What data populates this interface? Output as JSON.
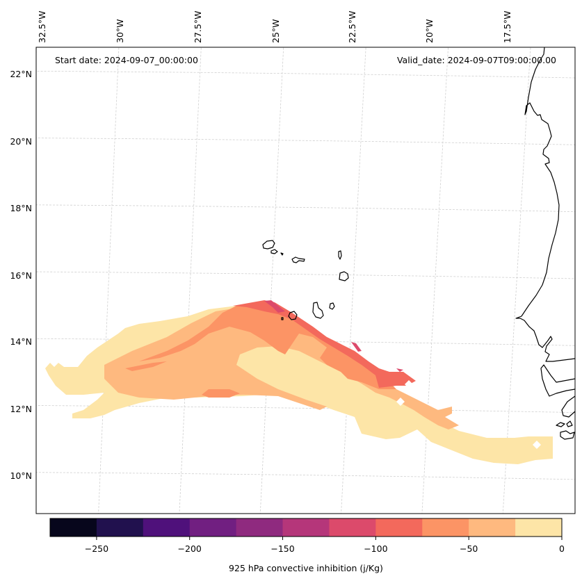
{
  "figure": {
    "annotation_left": "Start date: 2024-09-07_00:00:00",
    "annotation_right": "Valid_date: 2024-09-07T09:00:00.00"
  },
  "chart_data": {
    "type": "heatmap",
    "title": "",
    "variable": "925 hPa convective inhibition (j/Kg)",
    "start_date": "2024-09-07_00:00:00",
    "valid_date": "2024-09-07T09:00:00.00",
    "lon_range": [
      -33.0,
      -15.0
    ],
    "lat_range": [
      9.0,
      22.5
    ],
    "x_ticks": [
      "32.5°W",
      "30°W",
      "27.5°W",
      "25°W",
      "22.5°W",
      "20°W",
      "17.5°W"
    ],
    "x_tick_values": [
      -32.5,
      -30,
      -27.5,
      -25,
      -22.5,
      -20,
      -17.5
    ],
    "y_ticks": [
      "22°N",
      "20°N",
      "18°N",
      "16°N",
      "14°N",
      "12°N",
      "10°N"
    ],
    "y_tick_values": [
      22,
      20,
      18,
      16,
      14,
      12,
      10
    ],
    "grid": true,
    "colorbar": {
      "label": "925 hPa convective inhibition (j/Kg)",
      "orientation": "horizontal",
      "placement": "bottom",
      "range": [
        -275,
        0
      ],
      "levels": [
        -275,
        -250,
        -225,
        -200,
        -175,
        -150,
        -125,
        -100,
        -75,
        -50,
        -25,
        0
      ],
      "colors": [
        "#07061c",
        "#21114e",
        "#4f117b",
        "#711f81",
        "#8f2a7f",
        "#b5367a",
        "#dc4a6b",
        "#f3695c",
        "#fc9465",
        "#feb97f",
        "#fde5a7"
      ],
      "tick_values": [
        -250,
        -200,
        -150,
        -100,
        -50,
        0
      ],
      "tick_labels": [
        "−250",
        "−200",
        "−150",
        "−100",
        "−50",
        "0"
      ]
    },
    "regions": [
      {
        "level": "-25 to 0",
        "color": "#fde5a7",
        "description": "broad band from ~32.5°W,13°N east-southeast to ~16°W,10.5°N"
      },
      {
        "level": "-50 to -25",
        "color": "#feb97f",
        "description": "central band ~30°W–19°W, 12–14.5°N"
      },
      {
        "level": "-75 to -50",
        "color": "#fc9465",
        "description": "northern core ~28°W–21°W, 12.5–15°N"
      },
      {
        "level": "-100 to -75",
        "color": "#f3695c",
        "description": "northeast edge near Cape Verde ~25°W–21°W, 12.5–15°N"
      },
      {
        "level": "-125 to -100",
        "color": "#dc4a6b",
        "description": "thin fringes along north-eastern edge"
      }
    ]
  }
}
